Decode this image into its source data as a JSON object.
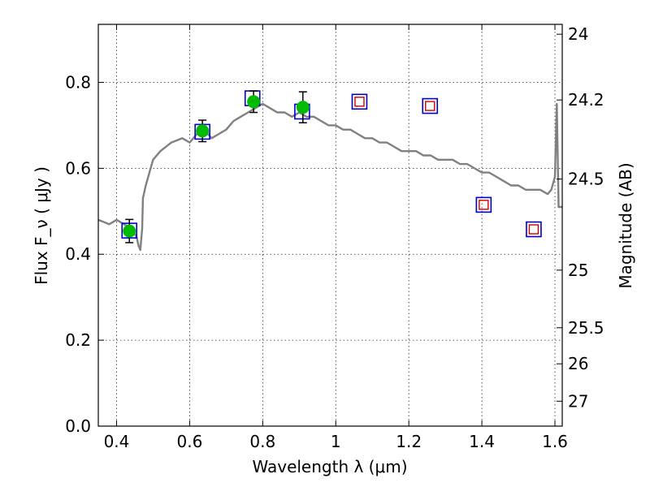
{
  "chart_data": {
    "type": "scatter",
    "xlabel": "Wavelength  λ (μm)",
    "ylabel": "Flux  F_ν  ( μJy )",
    "y2label": "Magnitude (AB)",
    "xlim": [
      0.35,
      1.62
    ],
    "ylim": [
      0.0,
      0.935
    ],
    "grid": true,
    "x_ticks": [
      0.4,
      0.6,
      0.8,
      1.0,
      1.2,
      1.4,
      1.6
    ],
    "x_tick_labels": [
      "0.4",
      "0.6",
      "0.8",
      "1",
      "1.2",
      "1.4",
      "1.6"
    ],
    "y_ticks": [
      0.0,
      0.2,
      0.4,
      0.6,
      0.8
    ],
    "y_tick_labels": [
      "0.0",
      "0.2",
      "0.4",
      "0.6",
      "0.8"
    ],
    "y2_ticks": [
      {
        "label": "24",
        "flux": 0.912
      },
      {
        "label": "24.2",
        "flux": 0.759
      },
      {
        "label": "24.5",
        "flux": 0.575
      },
      {
        "label": "25",
        "flux": 0.363
      },
      {
        "label": "25.5",
        "flux": 0.229
      },
      {
        "label": "26",
        "flux": 0.145
      },
      {
        "label": "27",
        "flux": 0.058
      }
    ],
    "colors": {
      "model": "#808080",
      "observed": "#00bb00",
      "synthetic_box": "#0000cc",
      "predicted_box": "#cc0000",
      "errorbar": "#000000"
    },
    "series": [
      {
        "type": "line",
        "x": [
          0.35,
          0.38,
          0.4,
          0.42,
          0.44,
          0.455,
          0.46,
          0.465,
          0.47,
          0.472,
          0.48,
          0.5,
          0.52,
          0.55,
          0.58,
          0.6,
          0.61,
          0.62,
          0.63,
          0.64,
          0.66,
          0.68,
          0.7,
          0.72,
          0.74,
          0.76,
          0.78,
          0.8,
          0.82,
          0.84,
          0.86,
          0.88,
          0.9,
          0.92,
          0.94,
          0.96,
          0.98,
          1.0,
          1.02,
          1.04,
          1.06,
          1.08,
          1.1,
          1.12,
          1.14,
          1.16,
          1.18,
          1.2,
          1.22,
          1.24,
          1.26,
          1.28,
          1.3,
          1.32,
          1.34,
          1.36,
          1.38,
          1.4,
          1.42,
          1.44,
          1.46,
          1.48,
          1.5,
          1.52,
          1.54,
          1.56,
          1.58,
          1.59,
          1.6,
          1.605,
          1.61,
          1.62
        ],
        "y": [
          0.48,
          0.47,
          0.48,
          0.47,
          0.46,
          0.44,
          0.42,
          0.41,
          0.46,
          0.53,
          0.56,
          0.62,
          0.64,
          0.66,
          0.67,
          0.66,
          0.67,
          0.68,
          0.68,
          0.69,
          0.67,
          0.68,
          0.69,
          0.71,
          0.72,
          0.73,
          0.74,
          0.75,
          0.74,
          0.73,
          0.73,
          0.72,
          0.73,
          0.72,
          0.72,
          0.71,
          0.7,
          0.7,
          0.69,
          0.69,
          0.68,
          0.67,
          0.67,
          0.66,
          0.66,
          0.65,
          0.64,
          0.64,
          0.64,
          0.63,
          0.63,
          0.62,
          0.62,
          0.62,
          0.61,
          0.61,
          0.6,
          0.59,
          0.59,
          0.58,
          0.57,
          0.56,
          0.56,
          0.55,
          0.55,
          0.55,
          0.54,
          0.55,
          0.58,
          0.75,
          0.51,
          0.51
        ]
      },
      {
        "type": "observed_points",
        "points": [
          {
            "x": 0.435,
            "y": 0.454,
            "err": 0.027
          },
          {
            "x": 0.635,
            "y": 0.687,
            "err": 0.025
          },
          {
            "x": 0.775,
            "y": 0.755,
            "err": 0.025
          },
          {
            "x": 0.91,
            "y": 0.742,
            "err": 0.036
          }
        ]
      },
      {
        "type": "model_boxes",
        "points": [
          {
            "x": 0.435,
            "y": 0.455
          },
          {
            "x": 0.635,
            "y": 0.685
          },
          {
            "x": 0.772,
            "y": 0.763
          },
          {
            "x": 0.908,
            "y": 0.732
          },
          {
            "x": 1.065,
            "y": 0.755
          },
          {
            "x": 1.258,
            "y": 0.745
          },
          {
            "x": 1.405,
            "y": 0.515
          },
          {
            "x": 1.542,
            "y": 0.458
          }
        ]
      },
      {
        "type": "predicted_small_boxes",
        "points": [
          {
            "x": 1.065,
            "y": 0.755
          },
          {
            "x": 1.258,
            "y": 0.745
          },
          {
            "x": 1.405,
            "y": 0.515
          },
          {
            "x": 1.542,
            "y": 0.458
          }
        ]
      }
    ]
  }
}
